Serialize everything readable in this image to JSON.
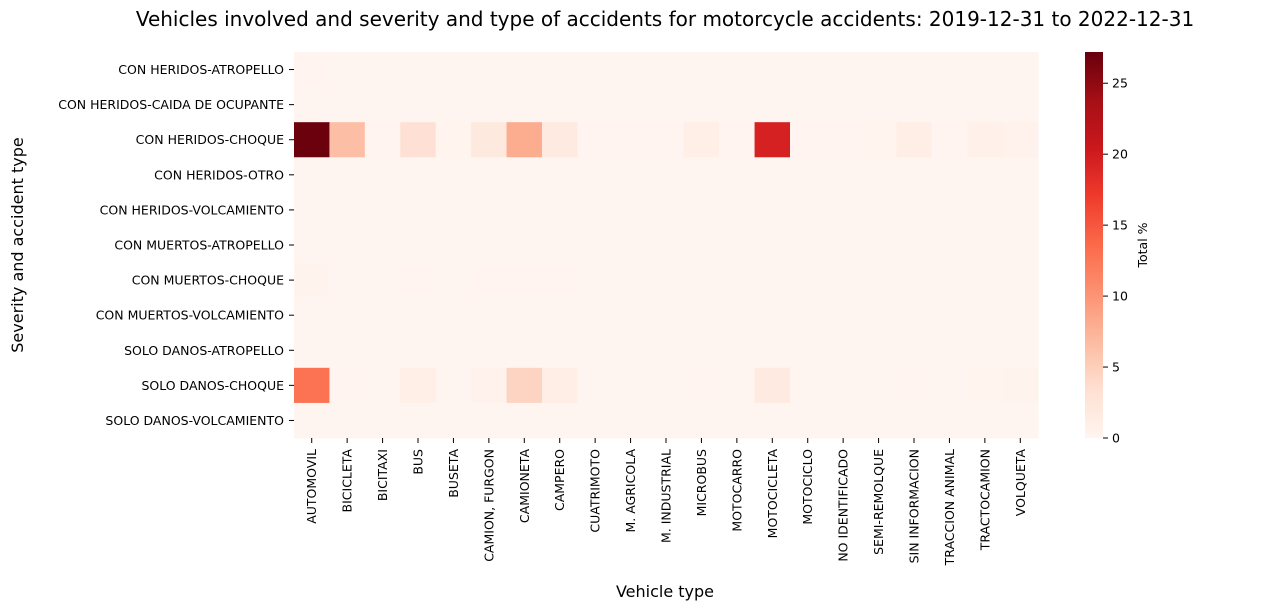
{
  "chart_data": {
    "type": "heatmap",
    "title": "Vehicles involved and severity and type of accidents for motorcycle accidents: 2019-12-31 to 2022-12-31",
    "xlabel": "Vehicle type",
    "ylabel": "Severity and accident type",
    "colorbar_label": "Total %",
    "colorbar_ticks": [
      0,
      5,
      10,
      15,
      20,
      25
    ],
    "colorscale": "Reds",
    "vmin": 0,
    "vmax": 27.2,
    "x": [
      "AUTOMOVIL",
      "BICICLETA",
      "BICITAXI",
      "BUS",
      "BUSETA",
      "CAMION, FURGON",
      "CAMIONETA",
      "CAMPERO",
      "CUATRIMOTO",
      "M. AGRICOLA",
      "M. INDUSTRIAL",
      "MICROBUS",
      "MOTOCARRO",
      "MOTOCICLETA",
      "MOTOCICLO",
      "NO IDENTIFICADO",
      "SEMI-REMOLQUE",
      "SIN INFORMACION",
      "TRACCION ANIMAL",
      "TRACTOCAMION",
      "VOLQUETA"
    ],
    "y": [
      "CON HERIDOS-ATROPELLO",
      "CON HERIDOS-CAIDA DE OCUPANTE",
      "CON HERIDOS-CHOQUE",
      "CON HERIDOS-OTRO",
      "CON HERIDOS-VOLCAMIENTO",
      "CON MUERTOS-ATROPELLO",
      "CON MUERTOS-CHOQUE",
      "CON MUERTOS-VOLCAMIENTO",
      "SOLO DANOS-ATROPELLO",
      "SOLO DANOS-CHOQUE",
      "SOLO DANOS-VOLCAMIENTO"
    ],
    "values": [
      [
        0.1,
        0.0,
        0.0,
        0.0,
        0.0,
        0.0,
        0.0,
        0.0,
        0.0,
        0.0,
        0.0,
        0.0,
        0.0,
        0.0,
        0.0,
        0.0,
        0.0,
        0.0,
        0.0,
        0.0,
        0.0
      ],
      [
        0.0,
        0.0,
        0.0,
        0.0,
        0.0,
        0.0,
        0.0,
        0.0,
        0.0,
        0.0,
        0.0,
        0.0,
        0.0,
        0.0,
        0.0,
        0.0,
        0.0,
        0.0,
        0.0,
        0.0,
        0.0
      ],
      [
        27.0,
        6.5,
        0.1,
        3.2,
        0.2,
        2.0,
        8.0,
        1.8,
        0.1,
        0.1,
        0.1,
        1.0,
        0.1,
        19.5,
        0.1,
        0.1,
        0.2,
        1.2,
        0.1,
        0.7,
        0.5
      ],
      [
        0.0,
        0.0,
        0.0,
        0.0,
        0.0,
        0.0,
        0.0,
        0.0,
        0.0,
        0.0,
        0.0,
        0.0,
        0.0,
        0.0,
        0.0,
        0.0,
        0.0,
        0.0,
        0.0,
        0.0,
        0.0
      ],
      [
        0.0,
        0.0,
        0.0,
        0.0,
        0.0,
        0.0,
        0.0,
        0.0,
        0.0,
        0.0,
        0.0,
        0.0,
        0.0,
        0.0,
        0.0,
        0.0,
        0.0,
        0.0,
        0.0,
        0.0,
        0.0
      ],
      [
        0.0,
        0.0,
        0.0,
        0.0,
        0.0,
        0.0,
        0.0,
        0.0,
        0.0,
        0.0,
        0.0,
        0.0,
        0.0,
        0.0,
        0.0,
        0.0,
        0.0,
        0.0,
        0.0,
        0.0,
        0.0
      ],
      [
        0.3,
        0.0,
        0.0,
        0.1,
        0.0,
        0.1,
        0.1,
        0.1,
        0.0,
        0.0,
        0.0,
        0.0,
        0.0,
        0.0,
        0.0,
        0.0,
        0.0,
        0.0,
        0.0,
        0.0,
        0.0
      ],
      [
        0.0,
        0.0,
        0.0,
        0.0,
        0.0,
        0.0,
        0.0,
        0.0,
        0.0,
        0.0,
        0.0,
        0.0,
        0.0,
        0.0,
        0.0,
        0.0,
        0.0,
        0.0,
        0.0,
        0.0,
        0.0
      ],
      [
        0.0,
        0.0,
        0.0,
        0.0,
        0.0,
        0.0,
        0.0,
        0.0,
        0.0,
        0.0,
        0.0,
        0.0,
        0.0,
        0.0,
        0.0,
        0.0,
        0.0,
        0.0,
        0.0,
        0.0,
        0.0
      ],
      [
        12.8,
        0.1,
        0.0,
        1.0,
        0.0,
        0.5,
        4.5,
        1.2,
        0.0,
        0.0,
        0.0,
        0.1,
        0.0,
        1.8,
        0.0,
        0.0,
        0.0,
        0.1,
        0.0,
        0.2,
        0.3
      ],
      [
        0.0,
        0.0,
        0.0,
        0.0,
        0.0,
        0.0,
        0.0,
        0.0,
        0.0,
        0.0,
        0.0,
        0.0,
        0.0,
        0.0,
        0.0,
        0.0,
        0.0,
        0.0,
        0.0,
        0.0,
        0.0
      ]
    ]
  }
}
